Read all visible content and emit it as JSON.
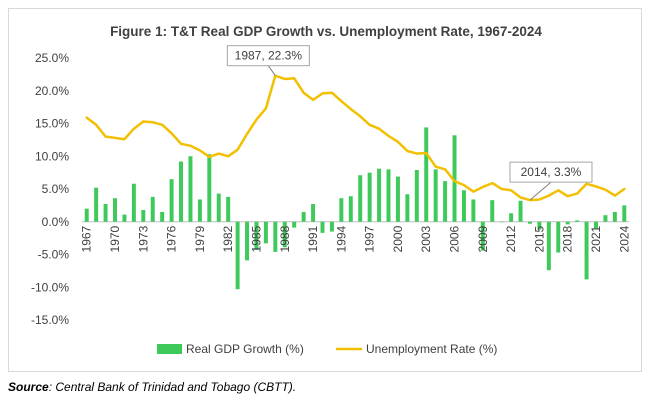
{
  "chart_data": {
    "type": "bar+line",
    "title": "Figure 1: T&T Real GDP Growth vs. Unemployment Rate, 1967-2024",
    "x_tick_labels": [
      "1967",
      "1970",
      "1973",
      "1976",
      "1979",
      "1982",
      "1985",
      "1988",
      "1991",
      "1994",
      "1997",
      "2000",
      "2003",
      "2006",
      "2009",
      "2012",
      "2015",
      "2018",
      "2021",
      "2024"
    ],
    "y_tick_labels": [
      "25.0%",
      "20.0%",
      "15.0%",
      "10.0%",
      "5.0%",
      "0.0%",
      "-5.0%",
      "-10.0%",
      "-15.0%"
    ],
    "ylim": [
      -15,
      25
    ],
    "series": [
      {
        "name": "Real GDP Growth (%)",
        "type": "bar",
        "color": "#3ec95b",
        "x": [
          1967,
          1968,
          1969,
          1970,
          1971,
          1972,
          1973,
          1974,
          1975,
          1976,
          1977,
          1978,
          1979,
          1980,
          1981,
          1982,
          1983,
          1984,
          1985,
          1986,
          1987,
          1988,
          1989,
          1990,
          1991,
          1992,
          1993,
          1994,
          1995,
          1996,
          1997,
          1998,
          1999,
          2000,
          2001,
          2002,
          2003,
          2004,
          2005,
          2006,
          2007,
          2008,
          2009,
          2010,
          2011,
          2012,
          2013,
          2014,
          2015,
          2016,
          2017,
          2018,
          2019,
          2020,
          2021,
          2022,
          2023,
          2024
        ],
        "values": [
          2.0,
          5.2,
          2.7,
          3.6,
          1.1,
          5.8,
          1.8,
          3.8,
          1.5,
          6.5,
          9.2,
          10.0,
          3.4,
          10.3,
          4.3,
          3.8,
          -10.3,
          -5.9,
          -4.3,
          -3.3,
          -4.6,
          -3.9,
          -0.9,
          1.5,
          2.7,
          -1.7,
          -1.5,
          3.6,
          3.9,
          7.1,
          7.5,
          8.1,
          8.0,
          6.9,
          4.2,
          7.9,
          14.4,
          8.0,
          6.2,
          13.2,
          4.8,
          3.4,
          -4.4,
          3.3,
          0.0,
          1.3,
          3.2,
          -0.3,
          -1.2,
          -7.4,
          -4.7,
          -0.4,
          0.2,
          -8.8,
          -1.0,
          1.0,
          1.5,
          2.5
        ]
      },
      {
        "name": "Unemployment Rate (%)",
        "type": "line",
        "color": "#f2c000",
        "x": [
          1967,
          1968,
          1969,
          1970,
          1971,
          1972,
          1973,
          1974,
          1975,
          1976,
          1977,
          1978,
          1979,
          1980,
          1981,
          1982,
          1983,
          1984,
          1985,
          1986,
          1987,
          1988,
          1989,
          1990,
          1991,
          1992,
          1993,
          1994,
          1995,
          1996,
          1997,
          1998,
          1999,
          2000,
          2001,
          2002,
          2003,
          2004,
          2005,
          2006,
          2007,
          2008,
          2009,
          2010,
          2011,
          2012,
          2013,
          2014,
          2015,
          2016,
          2017,
          2018,
          2019,
          2020,
          2021,
          2022,
          2023,
          2024
        ],
        "values": [
          15.9,
          14.8,
          13.0,
          12.8,
          12.6,
          14.2,
          15.3,
          15.2,
          14.8,
          13.5,
          11.9,
          11.6,
          10.9,
          9.9,
          10.4,
          10.0,
          11.0,
          13.4,
          15.6,
          17.3,
          22.3,
          21.8,
          21.9,
          19.7,
          18.6,
          19.6,
          19.7,
          18.4,
          17.2,
          16.1,
          14.8,
          14.2,
          13.1,
          12.2,
          10.8,
          10.4,
          10.5,
          8.4,
          8.0,
          6.2,
          5.6,
          4.6,
          5.3,
          5.9,
          5.0,
          4.8,
          3.7,
          3.3,
          3.4,
          4.0,
          4.8,
          3.9,
          4.3,
          5.8,
          5.4,
          4.9,
          4.0,
          5.0
        ]
      }
    ],
    "annotations": [
      {
        "text": "1987, 22.3%",
        "x": 1987,
        "y": 22.3
      },
      {
        "text": "2014, 3.3%",
        "x": 2014,
        "y": 3.3
      }
    ],
    "legend": "bottom-center",
    "grid": false
  },
  "source": {
    "label": "Source",
    "text": ": Central Bank of Trinidad and Tobago (CBTT)."
  }
}
